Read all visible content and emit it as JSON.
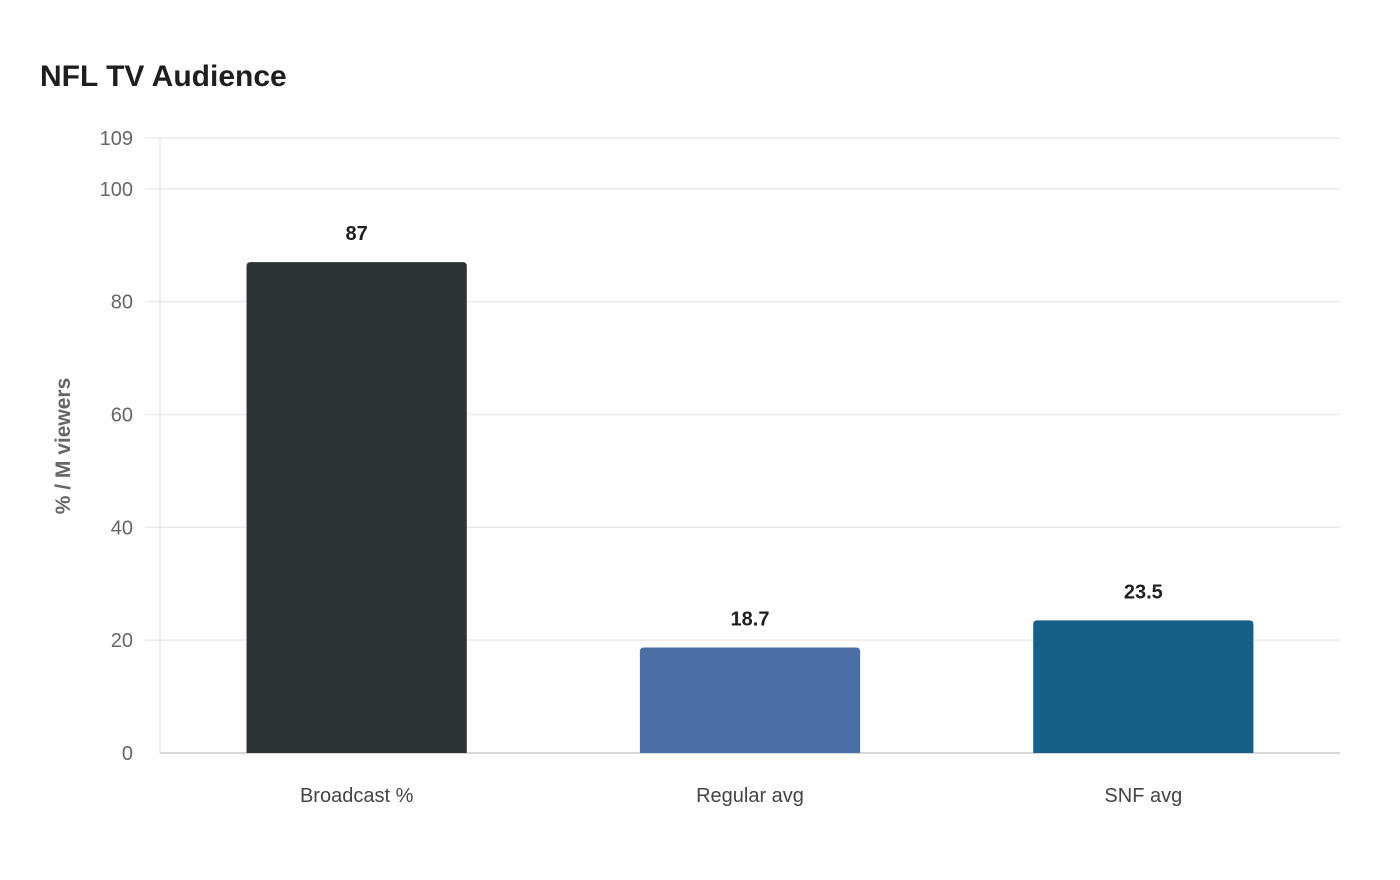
{
  "chart_data": {
    "type": "bar",
    "title": "NFL TV Audience",
    "xlabel": "",
    "ylabel": "% / M viewers",
    "categories": [
      "Broadcast %",
      "Regular avg",
      "SNF avg"
    ],
    "values": [
      87,
      18.7,
      23.5
    ],
    "data_labels": [
      "87",
      "18.7",
      "23.5"
    ],
    "colors": [
      "#2d3436",
      "#4a6fa5",
      "#166088"
    ],
    "ylim": [
      0,
      109
    ],
    "yticks": [
      0,
      20,
      40,
      60,
      80,
      100,
      109
    ],
    "grid": true
  }
}
